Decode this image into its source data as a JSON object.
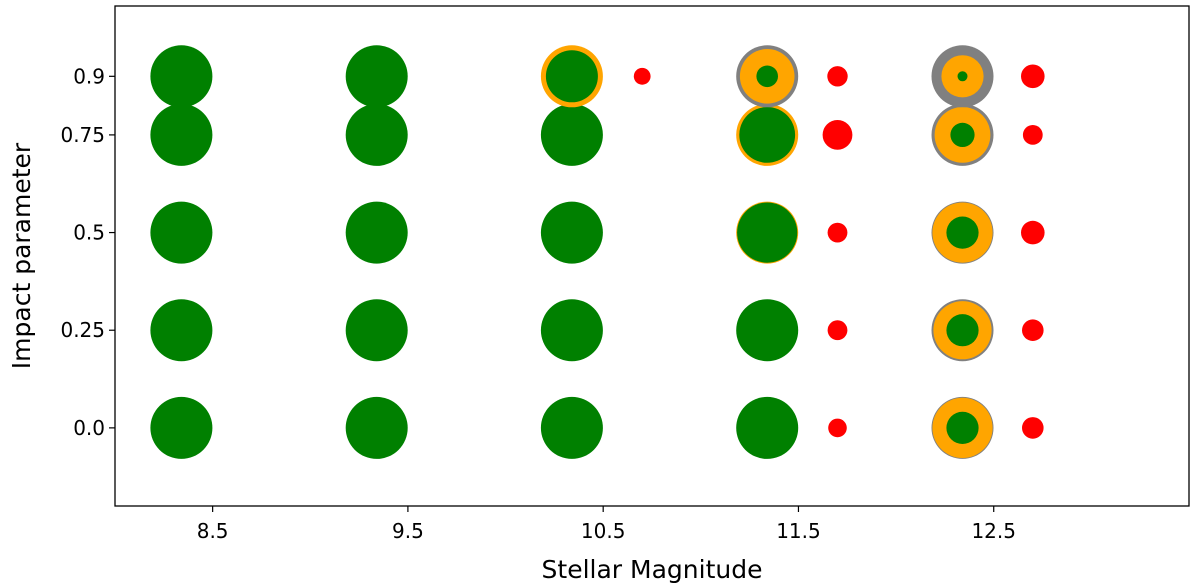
{
  "chart_data": {
    "type": "scatter",
    "title": "",
    "xlabel": "Stellar Magnitude",
    "ylabel": "Impact parameter",
    "xlim": [
      8.0,
      13.5
    ],
    "ylim": [
      -0.2,
      1.08
    ],
    "x_ticks": [
      "8.5",
      "9.5",
      "10.5",
      "11.5",
      "12.5"
    ],
    "y_ticks": [
      "0.0",
      "0.25",
      "0.5",
      "0.75",
      "0.9"
    ],
    "y_tick_positions": [
      0.0,
      0.25,
      0.5,
      0.75,
      0.9
    ],
    "grid": false,
    "legend": "none",
    "colors": {
      "green": "#008000",
      "orange": "#FFA500",
      "gray": "#808080",
      "red": "#FF0000"
    },
    "rings": [
      {
        "mag": 8.5,
        "b": 0.0,
        "gray": 0,
        "orange": 0,
        "green": 1.0
      },
      {
        "mag": 8.5,
        "b": 0.25,
        "gray": 0,
        "orange": 0,
        "green": 1.0
      },
      {
        "mag": 8.5,
        "b": 0.5,
        "gray": 0,
        "orange": 0,
        "green": 1.0
      },
      {
        "mag": 8.5,
        "b": 0.75,
        "gray": 0,
        "orange": 0,
        "green": 1.0
      },
      {
        "mag": 8.5,
        "b": 0.9,
        "gray": 0,
        "orange": 0,
        "green": 1.0
      },
      {
        "mag": 9.5,
        "b": 0.0,
        "gray": 0,
        "orange": 0,
        "green": 1.0
      },
      {
        "mag": 9.5,
        "b": 0.25,
        "gray": 0,
        "orange": 0,
        "green": 1.0
      },
      {
        "mag": 9.5,
        "b": 0.5,
        "gray": 0,
        "orange": 0,
        "green": 1.0
      },
      {
        "mag": 9.5,
        "b": 0.75,
        "gray": 0,
        "orange": 0,
        "green": 1.0
      },
      {
        "mag": 9.5,
        "b": 0.9,
        "gray": 0,
        "orange": 0,
        "green": 1.0
      },
      {
        "mag": 10.5,
        "b": 0.0,
        "gray": 0,
        "orange": 0,
        "green": 1.0
      },
      {
        "mag": 10.5,
        "b": 0.25,
        "gray": 0,
        "orange": 0,
        "green": 1.0
      },
      {
        "mag": 10.5,
        "b": 0.5,
        "gray": 0,
        "orange": 0,
        "green": 1.0
      },
      {
        "mag": 10.5,
        "b": 0.75,
        "gray": 0,
        "orange": 0,
        "green": 1.0
      },
      {
        "mag": 10.5,
        "b": 0.9,
        "gray": 0,
        "orange": 1.0,
        "green": 0.84
      },
      {
        "mag": 11.5,
        "b": 0.0,
        "gray": 0,
        "orange": 0,
        "green": 1.0
      },
      {
        "mag": 11.5,
        "b": 0.25,
        "gray": 0,
        "orange": 0,
        "green": 1.0
      },
      {
        "mag": 11.5,
        "b": 0.5,
        "gray": 0,
        "orange": 1.0,
        "green": 0.97
      },
      {
        "mag": 11.5,
        "b": 0.75,
        "gray": 0,
        "orange": 1.0,
        "green": 0.9
      },
      {
        "mag": 11.5,
        "b": 0.9,
        "gray": 1.0,
        "orange": 0.88,
        "green": 0.35
      },
      {
        "mag": 12.5,
        "b": 0.0,
        "gray": 1.0,
        "orange": 0.97,
        "green": 0.52
      },
      {
        "mag": 12.5,
        "b": 0.25,
        "gray": 1.0,
        "orange": 0.94,
        "green": 0.52
      },
      {
        "mag": 12.5,
        "b": 0.5,
        "gray": 1.0,
        "orange": 0.97,
        "green": 0.52
      },
      {
        "mag": 12.5,
        "b": 0.75,
        "gray": 1.0,
        "orange": 0.9,
        "green": 0.39
      },
      {
        "mag": 12.5,
        "b": 0.9,
        "gray": 1.0,
        "orange": 0.68,
        "green": 0.16
      }
    ],
    "red_points": [
      {
        "mag": 10.5,
        "b": 0.9,
        "size": 0.27
      },
      {
        "mag": 11.5,
        "b": 0.0,
        "size": 0.3
      },
      {
        "mag": 11.5,
        "b": 0.25,
        "size": 0.32
      },
      {
        "mag": 11.5,
        "b": 0.5,
        "size": 0.32
      },
      {
        "mag": 11.5,
        "b": 0.75,
        "size": 0.48
      },
      {
        "mag": 11.5,
        "b": 0.9,
        "size": 0.33
      },
      {
        "mag": 12.5,
        "b": 0.0,
        "size": 0.35
      },
      {
        "mag": 12.5,
        "b": 0.25,
        "size": 0.35
      },
      {
        "mag": 12.5,
        "b": 0.5,
        "size": 0.38
      },
      {
        "mag": 12.5,
        "b": 0.75,
        "size": 0.32
      },
      {
        "mag": 12.5,
        "b": 0.9,
        "size": 0.38
      }
    ]
  }
}
